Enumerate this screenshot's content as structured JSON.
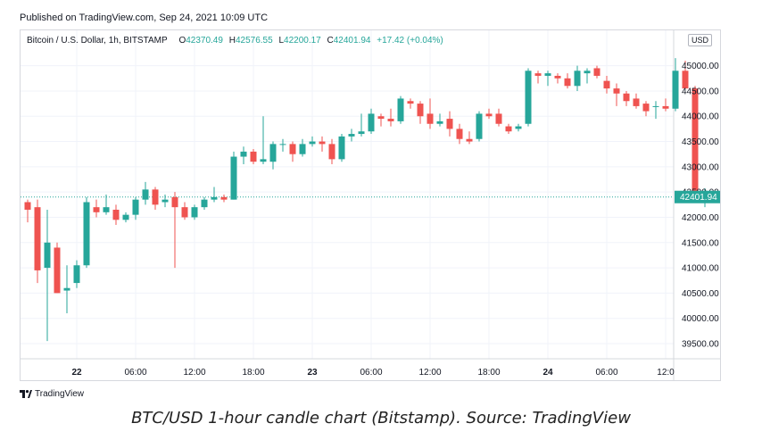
{
  "header": {
    "published": "Published on TradingView.com, Sep 24, 2021 10:09 UTC"
  },
  "legend": {
    "symbol": "Bitcoin / U.S. Dollar, 1h, BITSTAMP",
    "o_label": "O",
    "o_value": "42370.49",
    "h_label": "H",
    "h_value": "42576.55",
    "l_label": "L",
    "l_value": "42200.17",
    "c_label": "C",
    "c_value": "42401.94",
    "change": "+17.42 (+0.04%)"
  },
  "currency_badge": "USD",
  "footer": {
    "brand": "TradingView"
  },
  "caption": "BTC/USD 1-hour candle chart (Bitstamp). Source: TradingView",
  "colors": {
    "up": "#26a69a",
    "down": "#ef5350",
    "grid": "#f0f3fa",
    "axis_text": "#131722"
  },
  "chart_data": {
    "type": "candlestick",
    "title": "Bitcoin / U.S. Dollar, 1h, BITSTAMP",
    "ylim": [
      39200,
      45700
    ],
    "y_ticks": [
      "45000.00",
      "44500.00",
      "44000.00",
      "43500.00",
      "43000.00",
      "42500.00",
      "42000.00",
      "41500.00",
      "41000.00",
      "40500.00",
      "40000.00",
      "39500.00"
    ],
    "y_tick_values": [
      45000,
      44500,
      44000,
      43500,
      43000,
      42500,
      42000,
      41500,
      41000,
      40500,
      40000,
      39500
    ],
    "x_ticks": [
      {
        "label": "22",
        "index": 5,
        "bold": true
      },
      {
        "label": "06:00",
        "index": 11,
        "bold": false
      },
      {
        "label": "12:00",
        "index": 17,
        "bold": false
      },
      {
        "label": "18:00",
        "index": 23,
        "bold": false
      },
      {
        "label": "23",
        "index": 29,
        "bold": true
      },
      {
        "label": "06:00",
        "index": 35,
        "bold": false
      },
      {
        "label": "12:00",
        "index": 41,
        "bold": false
      },
      {
        "label": "18:00",
        "index": 47,
        "bold": false
      },
      {
        "label": "24",
        "index": 53,
        "bold": true
      },
      {
        "label": "06:00",
        "index": 59,
        "bold": false
      },
      {
        "label": "12:0",
        "index": 65,
        "bold": false
      }
    ],
    "last_price": 42401.94,
    "last_price_label": "42401.94",
    "candles": [
      {
        "o": 42300,
        "h": 42350,
        "l": 41900,
        "c": 42150
      },
      {
        "o": 42200,
        "h": 42350,
        "l": 40700,
        "c": 40950
      },
      {
        "o": 41000,
        "h": 42150,
        "l": 39550,
        "c": 41500
      },
      {
        "o": 41400,
        "h": 41500,
        "l": 40500,
        "c": 40500
      },
      {
        "o": 40550,
        "h": 41050,
        "l": 40100,
        "c": 40600
      },
      {
        "o": 40700,
        "h": 41150,
        "l": 40600,
        "c": 41050
      },
      {
        "o": 41050,
        "h": 42400,
        "l": 41000,
        "c": 42300
      },
      {
        "o": 42200,
        "h": 42350,
        "l": 42000,
        "c": 42100
      },
      {
        "o": 42100,
        "h": 42450,
        "l": 42050,
        "c": 42200
      },
      {
        "o": 42150,
        "h": 42250,
        "l": 41850,
        "c": 41950
      },
      {
        "o": 41950,
        "h": 42100,
        "l": 41900,
        "c": 42050
      },
      {
        "o": 42050,
        "h": 42400,
        "l": 41950,
        "c": 42350
      },
      {
        "o": 42350,
        "h": 42700,
        "l": 42250,
        "c": 42550
      },
      {
        "o": 42550,
        "h": 42600,
        "l": 42150,
        "c": 42250
      },
      {
        "o": 42300,
        "h": 42450,
        "l": 42200,
        "c": 42350
      },
      {
        "o": 42400,
        "h": 42500,
        "l": 41000,
        "c": 42200
      },
      {
        "o": 42200,
        "h": 42300,
        "l": 41950,
        "c": 42000
      },
      {
        "o": 42000,
        "h": 42250,
        "l": 41950,
        "c": 42200
      },
      {
        "o": 42200,
        "h": 42400,
        "l": 42150,
        "c": 42350
      },
      {
        "o": 42350,
        "h": 42600,
        "l": 42300,
        "c": 42400
      },
      {
        "o": 42400,
        "h": 42450,
        "l": 42300,
        "c": 42350
      },
      {
        "o": 42350,
        "h": 43300,
        "l": 42350,
        "c": 43200
      },
      {
        "o": 43200,
        "h": 43400,
        "l": 43050,
        "c": 43300
      },
      {
        "o": 43300,
        "h": 43350,
        "l": 43050,
        "c": 43100
      },
      {
        "o": 43100,
        "h": 44000,
        "l": 43050,
        "c": 43150
      },
      {
        "o": 43100,
        "h": 43500,
        "l": 42950,
        "c": 43450
      },
      {
        "o": 43450,
        "h": 43550,
        "l": 43300,
        "c": 43450
      },
      {
        "o": 43450,
        "h": 43500,
        "l": 43100,
        "c": 43250
      },
      {
        "o": 43250,
        "h": 43550,
        "l": 43200,
        "c": 43450
      },
      {
        "o": 43450,
        "h": 43600,
        "l": 43400,
        "c": 43500
      },
      {
        "o": 43500,
        "h": 43600,
        "l": 43300,
        "c": 43450
      },
      {
        "o": 43450,
        "h": 43550,
        "l": 43050,
        "c": 43150
      },
      {
        "o": 43150,
        "h": 43650,
        "l": 43100,
        "c": 43600
      },
      {
        "o": 43600,
        "h": 43750,
        "l": 43500,
        "c": 43650
      },
      {
        "o": 43650,
        "h": 44050,
        "l": 43600,
        "c": 43700
      },
      {
        "o": 43700,
        "h": 44150,
        "l": 43650,
        "c": 44050
      },
      {
        "o": 44000,
        "h": 44050,
        "l": 43800,
        "c": 43950
      },
      {
        "o": 43950,
        "h": 44150,
        "l": 43800,
        "c": 43900
      },
      {
        "o": 43900,
        "h": 44400,
        "l": 43850,
        "c": 44350
      },
      {
        "o": 44300,
        "h": 44350,
        "l": 44150,
        "c": 44250
      },
      {
        "o": 44250,
        "h": 44300,
        "l": 43850,
        "c": 44000
      },
      {
        "o": 44050,
        "h": 44350,
        "l": 43750,
        "c": 43850
      },
      {
        "o": 43850,
        "h": 44050,
        "l": 43800,
        "c": 43900
      },
      {
        "o": 43950,
        "h": 44100,
        "l": 43600,
        "c": 43750
      },
      {
        "o": 43750,
        "h": 43850,
        "l": 43450,
        "c": 43550
      },
      {
        "o": 43550,
        "h": 43700,
        "l": 43450,
        "c": 43500
      },
      {
        "o": 43550,
        "h": 44100,
        "l": 43500,
        "c": 44050
      },
      {
        "o": 44050,
        "h": 44150,
        "l": 43950,
        "c": 44000
      },
      {
        "o": 44050,
        "h": 44150,
        "l": 43800,
        "c": 43850
      },
      {
        "o": 43800,
        "h": 43850,
        "l": 43650,
        "c": 43700
      },
      {
        "o": 43750,
        "h": 43850,
        "l": 43700,
        "c": 43800
      },
      {
        "o": 43850,
        "h": 44950,
        "l": 43800,
        "c": 44900
      },
      {
        "o": 44850,
        "h": 44900,
        "l": 44650,
        "c": 44800
      },
      {
        "o": 44800,
        "h": 44900,
        "l": 44600,
        "c": 44850
      },
      {
        "o": 44800,
        "h": 44850,
        "l": 44650,
        "c": 44750
      },
      {
        "o": 44750,
        "h": 44850,
        "l": 44550,
        "c": 44600
      },
      {
        "o": 44600,
        "h": 45000,
        "l": 44500,
        "c": 44900
      },
      {
        "o": 44850,
        "h": 44950,
        "l": 44650,
        "c": 44900
      },
      {
        "o": 44950,
        "h": 45000,
        "l": 44750,
        "c": 44800
      },
      {
        "o": 44700,
        "h": 44800,
        "l": 44450,
        "c": 44550
      },
      {
        "o": 44550,
        "h": 44650,
        "l": 44200,
        "c": 44450
      },
      {
        "o": 44450,
        "h": 44500,
        "l": 44200,
        "c": 44300
      },
      {
        "o": 44350,
        "h": 44450,
        "l": 44150,
        "c": 44200
      },
      {
        "o": 44250,
        "h": 44300,
        "l": 44000,
        "c": 44100
      },
      {
        "o": 44200,
        "h": 44300,
        "l": 43950,
        "c": 44200
      },
      {
        "o": 44200,
        "h": 44350,
        "l": 44100,
        "c": 44150
      },
      {
        "o": 44150,
        "h": 45150,
        "l": 44100,
        "c": 44900
      },
      {
        "o": 44900,
        "h": 45100,
        "l": 44600,
        "c": 44550
      },
      {
        "o": 44550,
        "h": 44600,
        "l": 42300,
        "c": 42370
      },
      {
        "o": 42370.49,
        "h": 42576.55,
        "l": 42200.17,
        "c": 42401.94
      }
    ]
  }
}
